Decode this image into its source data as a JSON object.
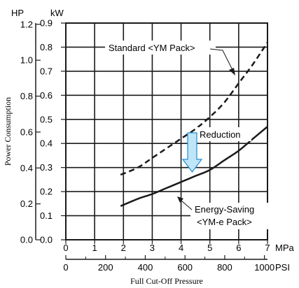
{
  "chart_data": {
    "type": "line",
    "x_unit_primary": "MPa",
    "x_unit_secondary": "PSI",
    "x_ticks_mpa": [
      "0",
      "1",
      "2",
      "3",
      "4",
      "5",
      "6",
      "7"
    ],
    "x_ticks_psi": [
      "0",
      "200",
      "400",
      "600",
      "800",
      "1000"
    ],
    "x_label": "Full Cut-Off Pressure",
    "xlim_mpa": [
      0,
      7
    ],
    "y_unit_kw": "kW",
    "y_unit_hp": "HP",
    "y_ticks_kw": [
      "0.0",
      "0.1",
      "0.2",
      "0.3",
      "0.4",
      "0.5",
      "0.6",
      "0.7",
      "0.8",
      "0.9"
    ],
    "y_ticks_hp": [
      "0.0",
      "0.2",
      "0.4",
      "0.6",
      "0.8",
      "1.0",
      "1.2"
    ],
    "y_label": "Power Consumption",
    "ylim_kw": [
      0,
      0.9
    ],
    "grid": true,
    "series": [
      {
        "name": "Standard <YM Pack>",
        "style": "dashed",
        "x": [
          1.9,
          2.5,
          3.0,
          3.5,
          4.0,
          4.5,
          5.0,
          5.5,
          6.0,
          6.5,
          7.0
        ],
        "y": [
          0.27,
          0.3,
          0.34,
          0.38,
          0.42,
          0.46,
          0.51,
          0.57,
          0.65,
          0.73,
          0.82
        ]
      },
      {
        "name": "Energy-Saving <YM-e Pack>",
        "style": "solid",
        "x": [
          1.9,
          2.5,
          3.0,
          3.5,
          4.0,
          4.5,
          5.0,
          5.5,
          6.0,
          6.5,
          7.0
        ],
        "y": [
          0.14,
          0.17,
          0.19,
          0.215,
          0.24,
          0.265,
          0.29,
          0.33,
          0.37,
          0.42,
          0.47
        ]
      }
    ],
    "labels": {
      "standard_line1": "Standard <YM Pack>",
      "saving_line1": "Energy-Saving",
      "saving_line2": "<YM-e Pack>",
      "reduction": "Reduction"
    },
    "colors": {
      "line": "#1a1a1a",
      "arrow_fill": "#bfe5f8",
      "arrow_stroke": "#1d8fcf"
    }
  }
}
